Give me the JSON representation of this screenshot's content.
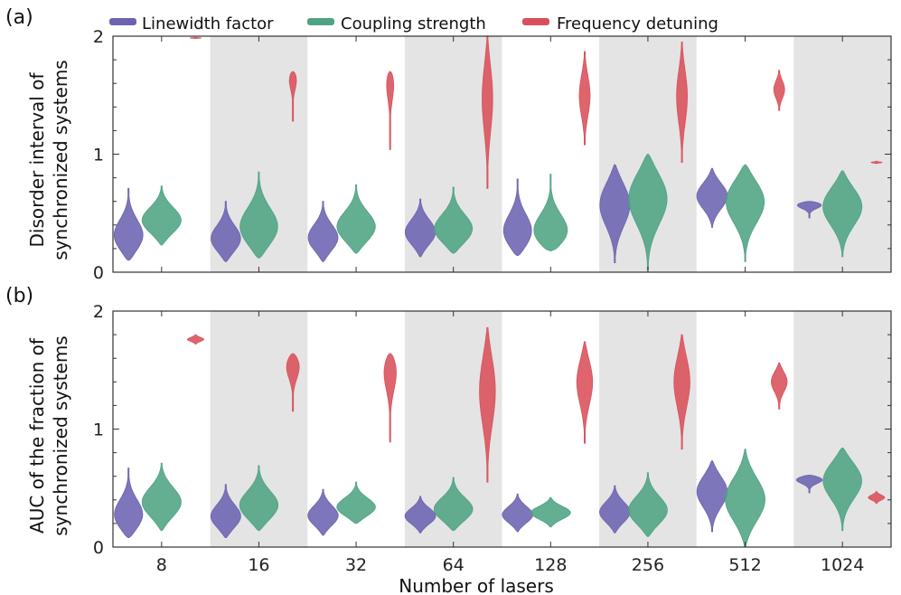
{
  "chart_data": [
    {
      "type": "violin",
      "panel_label": "(a)",
      "ylabel_line1": "Disorder interval of",
      "ylabel_line2": "synchronized systems",
      "ylim": [
        0,
        2
      ],
      "yticks": [
        "0",
        "1",
        "2"
      ],
      "categories": [
        "8",
        "16",
        "32",
        "64",
        "128",
        "256",
        "512",
        "1024"
      ],
      "shaded_groups": [
        "16",
        "64",
        "256",
        "1024"
      ],
      "series": [
        {
          "name": "Linewidth factor",
          "color": "#6c63b0",
          "violins": [
            {
              "min": 0.1,
              "max": 0.71,
              "median": 0.29
            },
            {
              "min": 0.09,
              "max": 0.6,
              "median": 0.27
            },
            {
              "min": 0.09,
              "max": 0.6,
              "median": 0.28
            },
            {
              "min": 0.13,
              "max": 0.62,
              "median": 0.33
            },
            {
              "min": 0.14,
              "max": 0.79,
              "median": 0.32
            },
            {
              "min": 0.08,
              "max": 0.91,
              "median": 0.59
            },
            {
              "min": 0.38,
              "max": 0.88,
              "median": 0.65
            },
            {
              "min": 0.46,
              "max": 0.6,
              "median": 0.58
            }
          ]
        },
        {
          "name": "Coupling strength",
          "color": "#4fa383",
          "violins": [
            {
              "min": 0.23,
              "max": 0.73,
              "median": 0.43
            },
            {
              "min": 0.12,
              "max": 0.85,
              "median": 0.36
            },
            {
              "min": 0.16,
              "max": 0.74,
              "median": 0.37
            },
            {
              "min": 0.16,
              "max": 0.72,
              "median": 0.35
            },
            {
              "min": 0.18,
              "max": 0.83,
              "median": 0.31
            },
            {
              "min": 0.02,
              "max": 1.0,
              "median": 0.65
            },
            {
              "min": 0.09,
              "max": 0.91,
              "median": 0.62
            },
            {
              "min": 0.13,
              "max": 0.86,
              "median": 0.57
            }
          ]
        },
        {
          "name": "Frequency detuning",
          "color": "#d9505a",
          "violins": [
            {
              "min": 1.98,
              "max": 1.99,
              "median": 1.985
            },
            {
              "min": 1.28,
              "max": 1.7,
              "median": 1.68
            },
            {
              "min": 1.04,
              "max": 1.7,
              "median": 1.67
            },
            {
              "min": 0.71,
              "max": 2.0,
              "median": 1.5
            },
            {
              "min": 1.08,
              "max": 1.87,
              "median": 1.5
            },
            {
              "min": 0.93,
              "max": 1.95,
              "median": 1.5
            },
            {
              "min": 1.37,
              "max": 1.71,
              "median": 1.55
            },
            {
              "min": 0.92,
              "max": 0.94,
              "median": 0.93
            }
          ]
        }
      ]
    },
    {
      "type": "violin",
      "panel_label": "(b)",
      "ylabel_line1": "AUC of the fraction of",
      "ylabel_line2": "synchronized systems",
      "xlabel": "Number of lasers",
      "ylim": [
        0,
        2
      ],
      "yticks": [
        "0",
        "1",
        "2"
      ],
      "categories": [
        "8",
        "16",
        "32",
        "64",
        "128",
        "256",
        "512",
        "1024"
      ],
      "shaded_groups": [
        "16",
        "64",
        "256",
        "1024"
      ],
      "series": [
        {
          "name": "Linewidth factor",
          "color": "#6c63b0",
          "violins": [
            {
              "min": 0.08,
              "max": 0.67,
              "median": 0.25
            },
            {
              "min": 0.08,
              "max": 0.53,
              "median": 0.25
            },
            {
              "min": 0.1,
              "max": 0.49,
              "median": 0.26
            },
            {
              "min": 0.12,
              "max": 0.43,
              "median": 0.26
            },
            {
              "min": 0.13,
              "max": 0.45,
              "median": 0.27
            },
            {
              "min": 0.12,
              "max": 0.52,
              "median": 0.29
            },
            {
              "min": 0.13,
              "max": 0.73,
              "median": 0.48
            },
            {
              "min": 0.46,
              "max": 0.61,
              "median": 0.58
            }
          ]
        },
        {
          "name": "Coupling strength",
          "color": "#4fa383",
          "violins": [
            {
              "min": 0.14,
              "max": 0.71,
              "median": 0.37
            },
            {
              "min": 0.14,
              "max": 0.69,
              "median": 0.34
            },
            {
              "min": 0.2,
              "max": 0.55,
              "median": 0.33
            },
            {
              "min": 0.14,
              "max": 0.59,
              "median": 0.31
            },
            {
              "min": 0.17,
              "max": 0.42,
              "median": 0.29
            },
            {
              "min": 0.09,
              "max": 0.63,
              "median": 0.3
            },
            {
              "min": 0.0,
              "max": 0.83,
              "median": 0.4
            },
            {
              "min": 0.14,
              "max": 0.84,
              "median": 0.58
            }
          ]
        },
        {
          "name": "Frequency detuning",
          "color": "#d9505a",
          "violins": [
            {
              "min": 1.72,
              "max": 1.8,
              "median": 1.76
            },
            {
              "min": 1.15,
              "max": 1.64,
              "median": 1.57
            },
            {
              "min": 0.89,
              "max": 1.64,
              "median": 1.55
            },
            {
              "min": 0.55,
              "max": 1.86,
              "median": 1.35
            },
            {
              "min": 0.88,
              "max": 1.74,
              "median": 1.42
            },
            {
              "min": 0.83,
              "max": 1.8,
              "median": 1.42
            },
            {
              "min": 1.17,
              "max": 1.56,
              "median": 1.41
            },
            {
              "min": 0.37,
              "max": 0.47,
              "median": 0.42
            }
          ]
        }
      ]
    }
  ]
}
